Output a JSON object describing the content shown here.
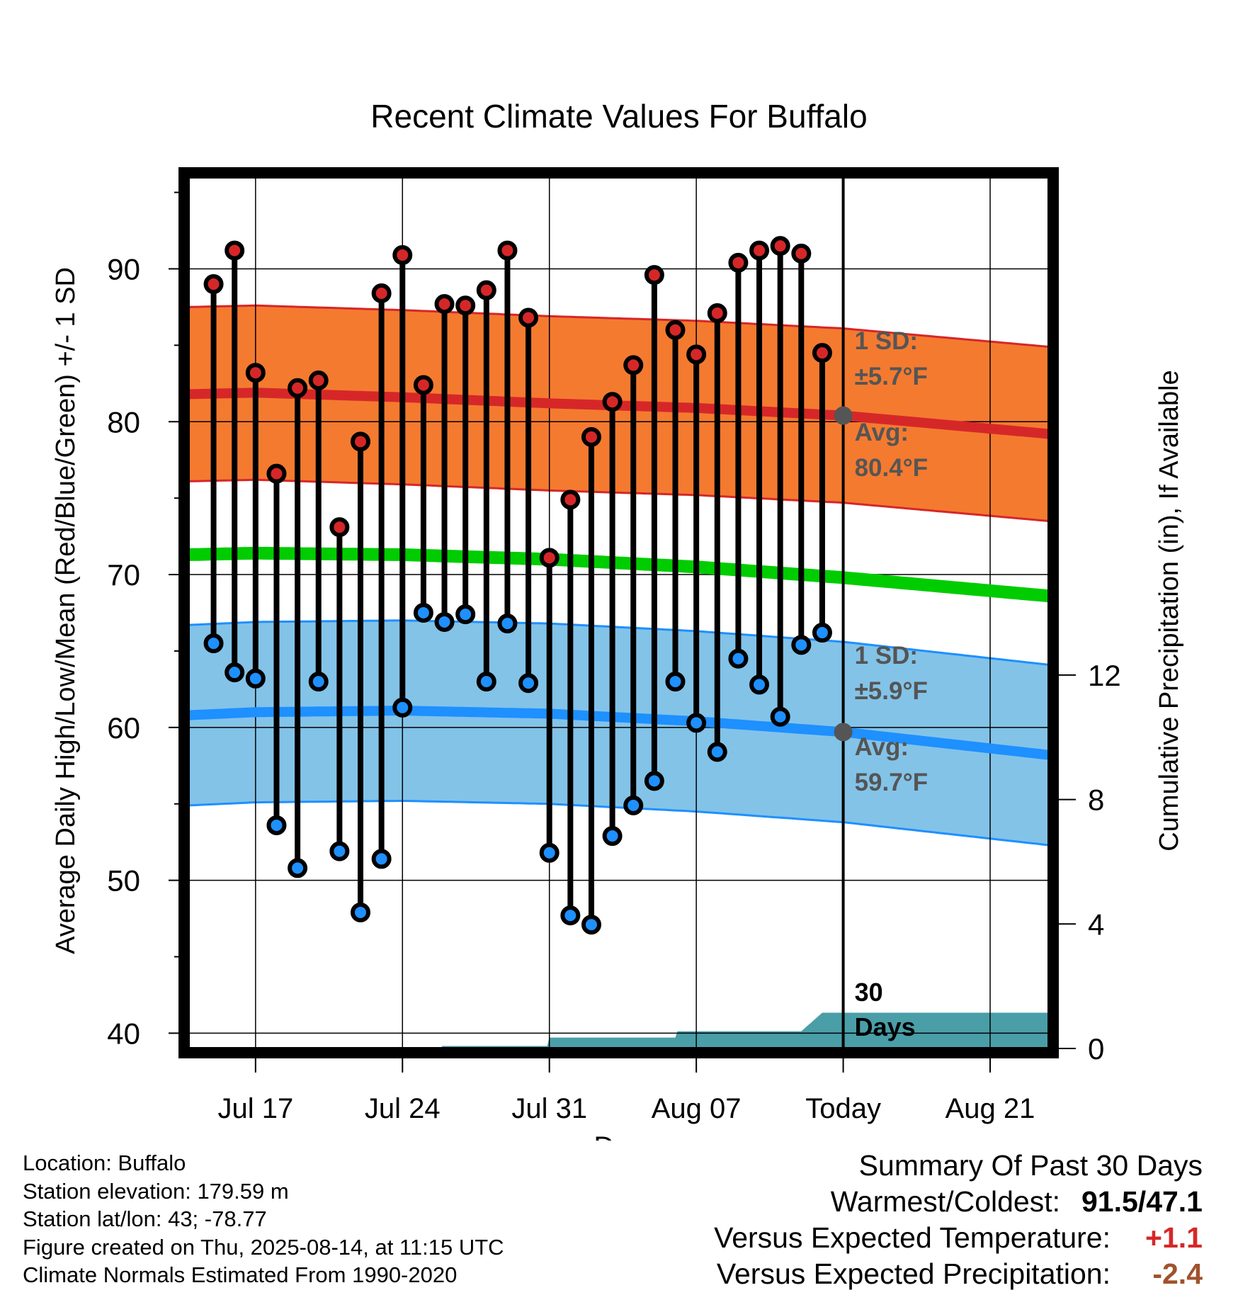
{
  "chart_data": {
    "type": "line",
    "title": "Recent Climate Values For Buffalo",
    "xlabel": "Day",
    "ylabel": "Average Daily High/Low/Mean (Red/Blue/Green) +/- 1 SD",
    "y2label": "Cumulative Precipitation (in), If Available",
    "ylim": [
      39,
      96
    ],
    "y2lim": [
      0,
      28
    ],
    "yticks": [
      40,
      50,
      60,
      70,
      80,
      90
    ],
    "y2ticks": [
      0,
      4,
      8,
      12
    ],
    "x_tick_labels": [
      "Jul 17",
      "Jul 24",
      "Jul 31",
      "Aug 07",
      "Today",
      "Aug 21"
    ],
    "x_tick_days": [
      17,
      24,
      31,
      38,
      45,
      52
    ],
    "xlim": [
      13.8,
      54.8
    ],
    "today_day": 45,
    "window_label": "30 Days",
    "daily_high": [
      89.0,
      91.2,
      83.2,
      76.6,
      82.2,
      82.7,
      73.1,
      78.7,
      88.4,
      90.9,
      82.4,
      87.7,
      87.6,
      88.6,
      91.2,
      86.8,
      71.1,
      74.9,
      79.0,
      81.3,
      83.7,
      89.6,
      86.0,
      84.4,
      87.1,
      90.4,
      91.2,
      91.5,
      91.0,
      84.5
    ],
    "daily_low": [
      65.5,
      63.6,
      63.2,
      53.6,
      50.8,
      63.0,
      51.9,
      47.9,
      51.4,
      61.3,
      67.5,
      66.9,
      67.4,
      63.0,
      66.8,
      62.9,
      51.8,
      47.7,
      47.1,
      52.9,
      54.9,
      56.5,
      63.0,
      60.3,
      58.4,
      64.5,
      62.8,
      60.7,
      65.4,
      66.2
    ],
    "first_obs_day": 15,
    "normal_high": {
      "days": [
        13.8,
        17,
        24,
        31,
        38,
        45,
        54.8
      ],
      "values": [
        81.8,
        81.9,
        81.6,
        81.2,
        80.9,
        80.4,
        79.2
      ]
    },
    "normal_high_sd": 5.7,
    "normal_mean": {
      "days": [
        13.8,
        17,
        24,
        31,
        38,
        45,
        54.8
      ],
      "values": [
        71.3,
        71.4,
        71.3,
        71.0,
        70.5,
        69.8,
        68.6
      ]
    },
    "normal_low": {
      "days": [
        13.8,
        17,
        24,
        31,
        38,
        45,
        54.8
      ],
      "values": [
        60.8,
        61.0,
        61.1,
        60.9,
        60.4,
        59.7,
        58.2
      ]
    },
    "normal_low_sd": 5.9,
    "precip_cumulative": {
      "days": [
        25.8,
        25.9,
        30.9,
        31.0,
        37.0,
        37.1,
        43.0,
        44.0,
        54.8
      ],
      "values": [
        0.0,
        0.08,
        0.08,
        0.35,
        0.35,
        0.55,
        0.55,
        1.15,
        1.15
      ]
    },
    "annotations": {
      "high_sd_label": "1 SD:",
      "high_sd_value": "±5.7°F",
      "high_avg_label": "Avg:",
      "high_avg_value": "80.4°F",
      "low_sd_label": "1 SD:",
      "low_sd_value": "±5.9°F",
      "low_avg_label": "Avg:",
      "low_avg_value": "59.7°F"
    },
    "colors": {
      "high_band": "#f47a30",
      "high_line": "#d62728",
      "mean_line": "#00cc00",
      "low_band": "#83c3e8",
      "low_line": "#1e90ff",
      "precip": "#4a9ea8",
      "high_dot": "#d62728",
      "low_dot": "#1e90ff",
      "annotation_text": "#555555",
      "avg_marker": "#555555"
    },
    "grid": true
  },
  "info": {
    "location": "Location: Buffalo",
    "elevation": "Station elevation: 179.59 m",
    "latlon": "Station lat/lon: 43; -78.77",
    "created": "Figure created on Thu, 2025-08-14, at 11:15 UTC",
    "normals": "Climate Normals Estimated From 1990-2020"
  },
  "summary": {
    "title": "Summary Of Past 30 Days",
    "warm_cold_label": "Warmest/Coldest:",
    "warm_cold_value": "91.5/47.1",
    "temp_label": "Versus Expected Temperature:",
    "temp_value": "+1.1",
    "temp_color": "#d62728",
    "precip_label": "Versus Expected Precipitation:",
    "precip_value": "-2.4",
    "precip_color": "#a0522d"
  }
}
